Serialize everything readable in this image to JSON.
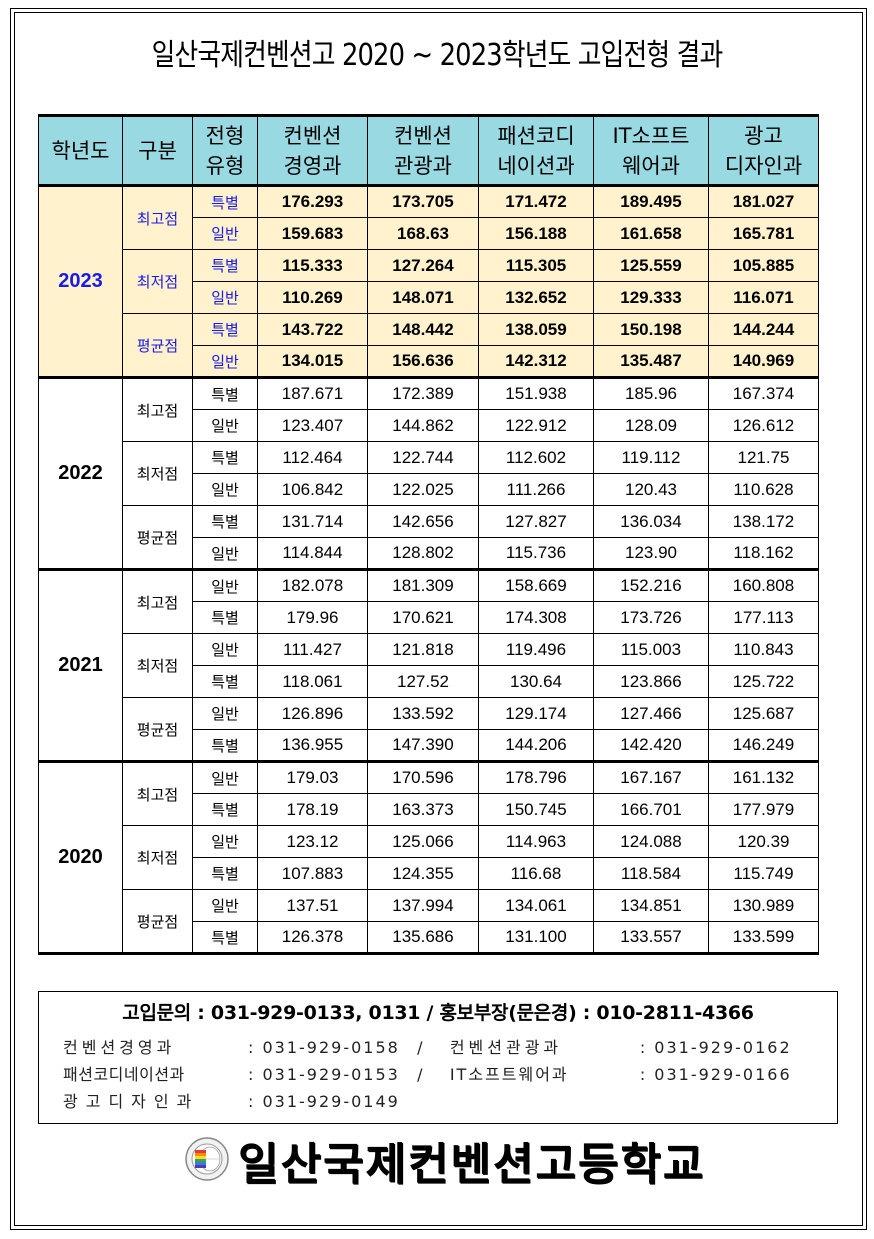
{
  "title": "일산국제컨벤션고 2020 ~ 2023학년도 고입전형 결과",
  "table": {
    "headers": {
      "year": "학년도",
      "category": "구분",
      "type_line1": "전형",
      "type_line2": "유형",
      "depts": [
        {
          "line1": "컨벤션",
          "line2": "경영과"
        },
        {
          "line1": "컨벤션",
          "line2": "관광과"
        },
        {
          "line1": "패션코디",
          "line2": "네이션과"
        },
        {
          "line1": "IT소프트",
          "line2": "웨어과"
        },
        {
          "line1": "광고",
          "line2": "디자인과"
        }
      ]
    },
    "years": [
      {
        "year": "2023",
        "groups": [
          {
            "category": "최고점",
            "rows": [
              {
                "type": "특별",
                "values": [
                  "176.293",
                  "173.705",
                  "171.472",
                  "189.495",
                  "181.027"
                ]
              },
              {
                "type": "일반",
                "values": [
                  "159.683",
                  "168.63",
                  "156.188",
                  "161.658",
                  "165.781"
                ]
              }
            ]
          },
          {
            "category": "최저점",
            "rows": [
              {
                "type": "특별",
                "values": [
                  "115.333",
                  "127.264",
                  "115.305",
                  "125.559",
                  "105.885"
                ]
              },
              {
                "type": "일반",
                "values": [
                  "110.269",
                  "148.071",
                  "132.652",
                  "129.333",
                  "116.071"
                ]
              }
            ]
          },
          {
            "category": "평균점",
            "rows": [
              {
                "type": "특별",
                "values": [
                  "143.722",
                  "148.442",
                  "138.059",
                  "150.198",
                  "144.244"
                ]
              },
              {
                "type": "일반",
                "values": [
                  "134.015",
                  "156.636",
                  "142.312",
                  "135.487",
                  "140.969"
                ]
              }
            ]
          }
        ]
      },
      {
        "year": "2022",
        "groups": [
          {
            "category": "최고점",
            "rows": [
              {
                "type": "특별",
                "values": [
                  "187.671",
                  "172.389",
                  "151.938",
                  "185.96",
                  "167.374"
                ]
              },
              {
                "type": "일반",
                "values": [
                  "123.407",
                  "144.862",
                  "122.912",
                  "128.09",
                  "126.612"
                ]
              }
            ]
          },
          {
            "category": "최저점",
            "rows": [
              {
                "type": "특별",
                "values": [
                  "112.464",
                  "122.744",
                  "112.602",
                  "119.112",
                  "121.75"
                ]
              },
              {
                "type": "일반",
                "values": [
                  "106.842",
                  "122.025",
                  "111.266",
                  "120.43",
                  "110.628"
                ]
              }
            ]
          },
          {
            "category": "평균점",
            "rows": [
              {
                "type": "특별",
                "values": [
                  "131.714",
                  "142.656",
                  "127.827",
                  "136.034",
                  "138.172"
                ]
              },
              {
                "type": "일반",
                "values": [
                  "114.844",
                  "128.802",
                  "115.736",
                  "123.90",
                  "118.162"
                ]
              }
            ]
          }
        ]
      },
      {
        "year": "2021",
        "groups": [
          {
            "category": "최고점",
            "rows": [
              {
                "type": "일반",
                "values": [
                  "182.078",
                  "181.309",
                  "158.669",
                  "152.216",
                  "160.808"
                ]
              },
              {
                "type": "특별",
                "values": [
                  "179.96",
                  "170.621",
                  "174.308",
                  "173.726",
                  "177.113"
                ]
              }
            ]
          },
          {
            "category": "최저점",
            "rows": [
              {
                "type": "일반",
                "values": [
                  "111.427",
                  "121.818",
                  "119.496",
                  "115.003",
                  "110.843"
                ]
              },
              {
                "type": "특별",
                "values": [
                  "118.061",
                  "127.52",
                  "130.64",
                  "123.866",
                  "125.722"
                ]
              }
            ]
          },
          {
            "category": "평균점",
            "rows": [
              {
                "type": "일반",
                "values": [
                  "126.896",
                  "133.592",
                  "129.174",
                  "127.466",
                  "125.687"
                ]
              },
              {
                "type": "특별",
                "values": [
                  "136.955",
                  "147.390",
                  "144.206",
                  "142.420",
                  "146.249"
                ]
              }
            ]
          }
        ]
      },
      {
        "year": "2020",
        "groups": [
          {
            "category": "최고점",
            "rows": [
              {
                "type": "일반",
                "values": [
                  "179.03",
                  "170.596",
                  "178.796",
                  "167.167",
                  "161.132"
                ]
              },
              {
                "type": "특별",
                "values": [
                  "178.19",
                  "163.373",
                  "150.745",
                  "166.701",
                  "177.979"
                ]
              }
            ]
          },
          {
            "category": "최저점",
            "rows": [
              {
                "type": "일반",
                "values": [
                  "123.12",
                  "125.066",
                  "114.963",
                  "124.088",
                  "120.39"
                ]
              },
              {
                "type": "특별",
                "values": [
                  "107.883",
                  "124.355",
                  "116.68",
                  "118.584",
                  "115.749"
                ]
              }
            ]
          },
          {
            "category": "평균점",
            "rows": [
              {
                "type": "일반",
                "values": [
                  "137.51",
                  "137.994",
                  "134.061",
                  "134.851",
                  "130.989"
                ]
              },
              {
                "type": "특별",
                "values": [
                  "126.378",
                  "135.686",
                  "131.100",
                  "133.557",
                  "133.599"
                ]
              }
            ]
          }
        ]
      }
    ]
  },
  "contact": {
    "main": "고입문의 : 031-929-0133, 0131  / 홍보부장(문은경) : 010-2811-4366",
    "lines": [
      {
        "dept1": "컨벤션경영과",
        "phone1": ": 031-929-0158",
        "sep": "/",
        "dept2": "컨벤션관광과",
        "phone2": ": 031-929-0162"
      },
      {
        "dept1": "패션코디네이션과",
        "phone1": ": 031-929-0153",
        "sep": "/",
        "dept2": "IT소프트웨어과",
        "phone2": ": 031-929-0166"
      },
      {
        "dept1": "광고디자인과",
        "phone1": ": 031-929-0149",
        "sep": "",
        "dept2": "",
        "phone2": ""
      }
    ]
  },
  "footer": {
    "school_name": "일산국제컨벤션고등학교",
    "logo_icon": "school-emblem-icon"
  },
  "colors": {
    "header_bg": "#99d9e2",
    "highlight_row_bg": "#fff2cc",
    "highlight_label": "#1a1ae6"
  }
}
